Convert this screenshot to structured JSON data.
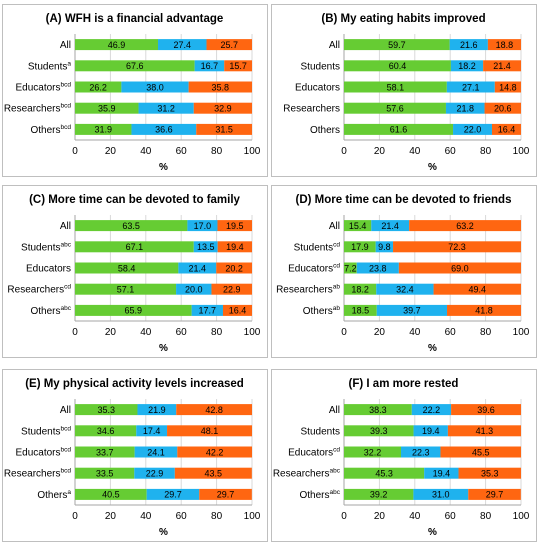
{
  "colors": {
    "agree": "#66cc33",
    "neutral": "#1fb2ee",
    "disagree": "#ff6611",
    "grid": "#d9d9d9",
    "border": "#bfbfbf"
  },
  "chart_data": [
    {
      "type": "bar",
      "orientation": "horizontal-stacked-100",
      "title": "(A) WFH is a financial advantage",
      "xlabel": "%",
      "xlim": [
        0,
        100
      ],
      "xticks": [
        "0",
        "20",
        "40",
        "60",
        "80",
        "100"
      ],
      "categories": [
        {
          "label": "All",
          "sup": ""
        },
        {
          "label": "Students",
          "sup": "a"
        },
        {
          "label": "Educators",
          "sup": "bcd"
        },
        {
          "label": "Researchers",
          "sup": "bcd"
        },
        {
          "label": "Others",
          "sup": "bcd"
        }
      ],
      "series": [
        {
          "values": [
            46.9,
            67.6,
            26.2,
            35.9,
            31.9
          ]
        },
        {
          "values": [
            27.4,
            16.7,
            38.0,
            31.2,
            36.6
          ]
        },
        {
          "values": [
            25.7,
            15.7,
            35.8,
            32.9,
            31.5
          ]
        }
      ]
    },
    {
      "type": "bar",
      "orientation": "horizontal-stacked-100",
      "title": "(B) My eating habits improved",
      "xlabel": "%",
      "xlim": [
        0,
        100
      ],
      "xticks": [
        "0",
        "20",
        "40",
        "60",
        "80",
        "100"
      ],
      "categories": [
        {
          "label": "All",
          "sup": ""
        },
        {
          "label": "Students",
          "sup": ""
        },
        {
          "label": "Educators",
          "sup": ""
        },
        {
          "label": "Researchers",
          "sup": ""
        },
        {
          "label": "Others",
          "sup": ""
        }
      ],
      "series": [
        {
          "values": [
            59.7,
            60.4,
            58.1,
            57.6,
            61.6
          ]
        },
        {
          "values": [
            21.6,
            18.2,
            27.1,
            21.8,
            22.0
          ]
        },
        {
          "values": [
            18.8,
            21.4,
            14.8,
            20.6,
            16.4
          ]
        }
      ]
    },
    {
      "type": "bar",
      "orientation": "horizontal-stacked-100",
      "title": "(C) More time can be devoted to family",
      "xlabel": "%",
      "xlim": [
        0,
        100
      ],
      "xticks": [
        "0",
        "20",
        "40",
        "60",
        "80",
        "100"
      ],
      "categories": [
        {
          "label": "All",
          "sup": ""
        },
        {
          "label": "Students",
          "sup": "abc"
        },
        {
          "label": "Educators",
          "sup": ""
        },
        {
          "label": "Researchers",
          "sup": "cd"
        },
        {
          "label": "Others",
          "sup": "abc"
        }
      ],
      "series": [
        {
          "values": [
            63.5,
            67.1,
            58.4,
            57.1,
            65.9
          ]
        },
        {
          "values": [
            17.0,
            13.5,
            21.4,
            20.0,
            17.7
          ]
        },
        {
          "values": [
            19.5,
            19.4,
            20.2,
            22.9,
            16.4
          ]
        }
      ]
    },
    {
      "type": "bar",
      "orientation": "horizontal-stacked-100",
      "title": "(D) More time can be devoted to friends",
      "xlabel": "%",
      "xlim": [
        0,
        100
      ],
      "xticks": [
        "0",
        "20",
        "40",
        "60",
        "80",
        "100"
      ],
      "categories": [
        {
          "label": "All",
          "sup": ""
        },
        {
          "label": "Students",
          "sup": "cd"
        },
        {
          "label": "Educators",
          "sup": "cd"
        },
        {
          "label": "Researchers",
          "sup": "ab"
        },
        {
          "label": "Others",
          "sup": "ab"
        }
      ],
      "series": [
        {
          "values": [
            15.4,
            17.9,
            7.2,
            18.2,
            18.5
          ]
        },
        {
          "values": [
            21.4,
            9.8,
            23.8,
            32.4,
            39.7
          ]
        },
        {
          "values": [
            63.2,
            72.3,
            69.0,
            49.4,
            41.8
          ]
        }
      ]
    },
    {
      "type": "bar",
      "orientation": "horizontal-stacked-100",
      "title": "(E) My physical activity levels increased",
      "xlabel": "%",
      "xlim": [
        0,
        100
      ],
      "xticks": [
        "0",
        "20",
        "40",
        "60",
        "80",
        "100"
      ],
      "categories": [
        {
          "label": "All",
          "sup": ""
        },
        {
          "label": "Students",
          "sup": "bcd"
        },
        {
          "label": "Educators",
          "sup": "bcd"
        },
        {
          "label": "Researchers",
          "sup": "bcd"
        },
        {
          "label": "Others",
          "sup": "a"
        }
      ],
      "series": [
        {
          "values": [
            35.3,
            34.6,
            33.7,
            33.5,
            40.5
          ]
        },
        {
          "values": [
            21.9,
            17.4,
            24.1,
            22.9,
            29.7
          ]
        },
        {
          "values": [
            42.8,
            48.1,
            42.2,
            43.5,
            29.7
          ]
        }
      ]
    },
    {
      "type": "bar",
      "orientation": "horizontal-stacked-100",
      "title": "(F) I am more rested",
      "xlabel": "%",
      "xlim": [
        0,
        100
      ],
      "xticks": [
        "0",
        "20",
        "40",
        "60",
        "80",
        "100"
      ],
      "categories": [
        {
          "label": "All",
          "sup": ""
        },
        {
          "label": "Students",
          "sup": ""
        },
        {
          "label": "Educators",
          "sup": "cd"
        },
        {
          "label": "Researchers",
          "sup": "abc"
        },
        {
          "label": "Others",
          "sup": "abc"
        }
      ],
      "series": [
        {
          "values": [
            38.3,
            39.3,
            32.2,
            45.3,
            39.2
          ]
        },
        {
          "values": [
            22.2,
            19.4,
            22.3,
            19.4,
            31.0
          ]
        },
        {
          "values": [
            39.6,
            41.3,
            45.5,
            35.3,
            29.7
          ]
        }
      ]
    }
  ]
}
